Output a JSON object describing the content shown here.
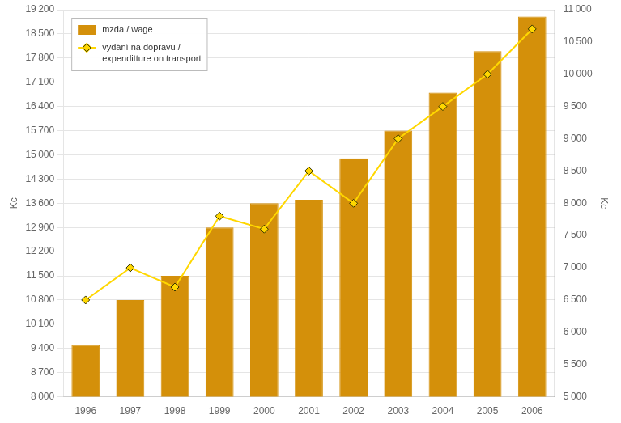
{
  "chart_data": {
    "type": "bar",
    "categories": [
      "1996",
      "1997",
      "1998",
      "1999",
      "2000",
      "2001",
      "2002",
      "2003",
      "2004",
      "2005",
      "2006"
    ],
    "series": [
      {
        "name": "mzda / wage",
        "type": "bar",
        "color": "#D4900A",
        "values": [
          9500,
          10800,
          11500,
          12900,
          13600,
          13700,
          14900,
          15700,
          16800,
          18000,
          19000
        ]
      },
      {
        "name": "vydání na dopravu /\nexpenditture on transport",
        "type": "line",
        "color": "#FFD700",
        "marker": "diamond",
        "axis": "y2",
        "values": [
          6500,
          7000,
          6700,
          7800,
          7600,
          8500,
          8000,
          9000,
          9500,
          10000,
          10700
        ]
      }
    ],
    "ylabel": "Kc",
    "y2label": "Kc",
    "ylim": [
      8000,
      19200
    ],
    "yticks": [
      {
        "value": 8000,
        "label": "8 000"
      },
      {
        "value": 8700,
        "label": "8 700"
      },
      {
        "value": 9400,
        "label": "9 400"
      },
      {
        "value": 10100,
        "label": "10 100"
      },
      {
        "value": 10800,
        "label": "10 800"
      },
      {
        "value": 11500,
        "label": "11 500"
      },
      {
        "value": 12200,
        "label": "12 200"
      },
      {
        "value": 12900,
        "label": "12 900"
      },
      {
        "value": 13600,
        "label": "13 600"
      },
      {
        "value": 14300,
        "label": "14 300"
      },
      {
        "value": 15000,
        "label": "15 000"
      },
      {
        "value": 15700,
        "label": "15 700"
      },
      {
        "value": 16400,
        "label": "16 400"
      },
      {
        "value": 17100,
        "label": "17 100"
      },
      {
        "value": 17800,
        "label": "17 800"
      },
      {
        "value": 18500,
        "label": "18 500"
      },
      {
        "value": 19200,
        "label": "19 200"
      }
    ],
    "y2lim": [
      5000,
      11000
    ],
    "y2ticks": [
      {
        "value": 5000,
        "label": "5 000"
      },
      {
        "value": 5500,
        "label": "5 500"
      },
      {
        "value": 6000,
        "label": "6 000"
      },
      {
        "value": 6500,
        "label": "6 500"
      },
      {
        "value": 7000,
        "label": "7 000"
      },
      {
        "value": 7500,
        "label": "7 500"
      },
      {
        "value": 8000,
        "label": "8 000"
      },
      {
        "value": 8500,
        "label": "8 500"
      },
      {
        "value": 9000,
        "label": "9 000"
      },
      {
        "value": 9500,
        "label": "9 500"
      },
      {
        "value": 10000,
        "label": "10 000"
      },
      {
        "value": 10500,
        "label": "10 500"
      },
      {
        "value": 11000,
        "label": "11 000"
      }
    ],
    "grid": true,
    "legend": "upper left"
  }
}
